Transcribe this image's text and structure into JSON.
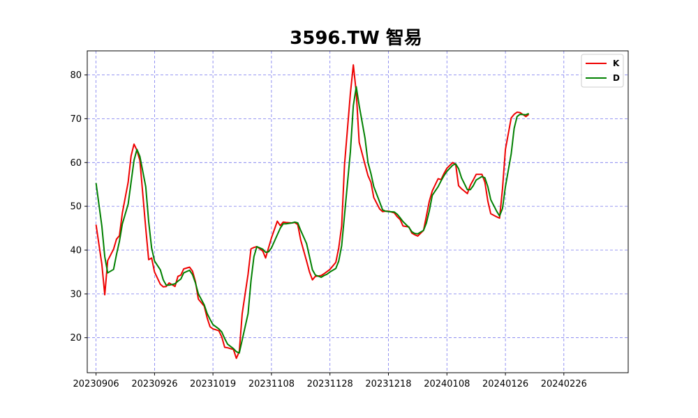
{
  "chart_data": {
    "type": "line",
    "title": "3596.TW 智易",
    "xlabel": "",
    "ylabel": "",
    "xlim": [
      "2023-09-03",
      "2024-03-06"
    ],
    "ylim": [
      12,
      85.5
    ],
    "grid": true,
    "grid_style": "dashed",
    "grid_color": "#7777ee",
    "legend_position": "top-right",
    "x_ticks": [
      {
        "date": "2023-09-06",
        "label": "20230906"
      },
      {
        "date": "2023-09-26",
        "label": "20230926"
      },
      {
        "date": "2023-10-16",
        "label": "20231019"
      },
      {
        "date": "2023-11-05",
        "label": "20231108"
      },
      {
        "date": "2023-11-25",
        "label": "20231128"
      },
      {
        "date": "2023-12-15",
        "label": "20231218"
      },
      {
        "date": "2024-01-04",
        "label": "20240108"
      },
      {
        "date": "2024-01-24",
        "label": "20240126"
      },
      {
        "date": "2024-02-13",
        "label": "20240226"
      }
    ],
    "y_ticks": [
      20,
      30,
      40,
      50,
      60,
      70,
      80
    ],
    "series": [
      {
        "name": "K",
        "color": "#ee0000",
        "points": [
          [
            "2023-09-06",
            45.8
          ],
          [
            "2023-09-08",
            36.8
          ],
          [
            "2023-09-09",
            29.8
          ],
          [
            "2023-09-10",
            37.6
          ],
          [
            "2023-09-12",
            40.2
          ],
          [
            "2023-09-13",
            42.5
          ],
          [
            "2023-09-14",
            43.3
          ],
          [
            "2023-09-15",
            48.5
          ],
          [
            "2023-09-17",
            55.5
          ],
          [
            "2023-09-18",
            61.5
          ],
          [
            "2023-09-19",
            64.2
          ],
          [
            "2023-09-20",
            62.8
          ],
          [
            "2023-09-21",
            60.5
          ],
          [
            "2023-09-23",
            45.0
          ],
          [
            "2023-09-24",
            37.8
          ],
          [
            "2023-09-25",
            38.2
          ],
          [
            "2023-09-26",
            35.0
          ],
          [
            "2023-09-28",
            32.2
          ],
          [
            "2023-09-29",
            31.6
          ],
          [
            "2023-09-30",
            31.7
          ],
          [
            "2023-10-01",
            32.5
          ],
          [
            "2023-10-03",
            31.7
          ],
          [
            "2023-10-04",
            34.0
          ],
          [
            "2023-10-05",
            34.3
          ],
          [
            "2023-10-06",
            35.7
          ],
          [
            "2023-10-08",
            36.1
          ],
          [
            "2023-10-09",
            35.2
          ],
          [
            "2023-10-10",
            32.8
          ],
          [
            "2023-10-11",
            28.8
          ],
          [
            "2023-10-13",
            27.2
          ],
          [
            "2023-10-14",
            24.5
          ],
          [
            "2023-10-15",
            22.5
          ],
          [
            "2023-10-16",
            22.0
          ],
          [
            "2023-10-18",
            21.6
          ],
          [
            "2023-10-19",
            20.2
          ],
          [
            "2023-10-20",
            17.8
          ],
          [
            "2023-10-21",
            17.7
          ],
          [
            "2023-10-23",
            17.3
          ],
          [
            "2023-10-24",
            15.3
          ],
          [
            "2023-10-25",
            16.8
          ],
          [
            "2023-10-26",
            25.5
          ],
          [
            "2023-10-28",
            34.5
          ],
          [
            "2023-10-29",
            40.3
          ],
          [
            "2023-10-30",
            40.6
          ],
          [
            "2023-10-31",
            40.8
          ],
          [
            "2023-11-02",
            39.8
          ],
          [
            "2023-11-03",
            38.2
          ],
          [
            "2023-11-04",
            40.5
          ],
          [
            "2023-11-05",
            42.8
          ],
          [
            "2023-11-07",
            46.6
          ],
          [
            "2023-11-08",
            45.6
          ],
          [
            "2023-11-09",
            46.4
          ],
          [
            "2023-11-10",
            46.3
          ],
          [
            "2023-11-12",
            46.2
          ],
          [
            "2023-11-13",
            46.3
          ],
          [
            "2023-11-14",
            45.8
          ],
          [
            "2023-11-15",
            42.3
          ],
          [
            "2023-11-17",
            37.5
          ],
          [
            "2023-11-18",
            35.0
          ],
          [
            "2023-11-19",
            33.2
          ],
          [
            "2023-11-20",
            34.0
          ],
          [
            "2023-11-22",
            34.2
          ],
          [
            "2023-11-23",
            34.6
          ],
          [
            "2023-11-24",
            35.1
          ],
          [
            "2023-11-25",
            35.6
          ],
          [
            "2023-11-27",
            37.2
          ],
          [
            "2023-11-28",
            40.5
          ],
          [
            "2023-11-29",
            45.5
          ],
          [
            "2023-11-30",
            59.5
          ],
          [
            "2023-12-02",
            75.8
          ],
          [
            "2023-12-03",
            82.3
          ],
          [
            "2023-12-04",
            76.0
          ],
          [
            "2023-12-05",
            64.6
          ],
          [
            "2023-12-07",
            59.5
          ],
          [
            "2023-12-08",
            57.0
          ],
          [
            "2023-12-09",
            55.5
          ],
          [
            "2023-12-10",
            52.0
          ],
          [
            "2023-12-12",
            49.4
          ],
          [
            "2023-12-13",
            48.8
          ],
          [
            "2023-12-14",
            48.9
          ],
          [
            "2023-12-15",
            48.9
          ],
          [
            "2023-12-17",
            48.5
          ],
          [
            "2023-12-18",
            47.6
          ],
          [
            "2023-12-19",
            47.0
          ],
          [
            "2023-12-20",
            45.5
          ],
          [
            "2023-12-22",
            45.3
          ],
          [
            "2023-12-23",
            43.9
          ],
          [
            "2023-12-24",
            43.5
          ],
          [
            "2023-12-25",
            43.2
          ],
          [
            "2023-12-27",
            44.5
          ],
          [
            "2023-12-28",
            47.8
          ],
          [
            "2023-12-29",
            51.2
          ],
          [
            "2023-12-30",
            53.5
          ],
          [
            "2024-01-01",
            56.3
          ],
          [
            "2024-01-02",
            56.1
          ],
          [
            "2024-01-03",
            57.5
          ],
          [
            "2024-01-04",
            58.7
          ],
          [
            "2024-01-06",
            60.0
          ],
          [
            "2024-01-07",
            59.6
          ],
          [
            "2024-01-08",
            54.7
          ],
          [
            "2024-01-09",
            54.0
          ],
          [
            "2024-01-11",
            52.9
          ],
          [
            "2024-01-12",
            54.8
          ],
          [
            "2024-01-13",
            56.0
          ],
          [
            "2024-01-14",
            57.3
          ],
          [
            "2024-01-16",
            57.3
          ],
          [
            "2024-01-17",
            55.5
          ],
          [
            "2024-01-18",
            51.2
          ],
          [
            "2024-01-19",
            48.3
          ],
          [
            "2024-01-21",
            47.6
          ],
          [
            "2024-01-22",
            47.3
          ],
          [
            "2024-01-23",
            54.0
          ],
          [
            "2024-01-24",
            63.0
          ],
          [
            "2024-01-26",
            70.2
          ],
          [
            "2024-01-27",
            71.0
          ],
          [
            "2024-01-28",
            71.5
          ],
          [
            "2024-01-29",
            71.4
          ],
          [
            "2024-01-31",
            70.5
          ],
          [
            "2024-02-01",
            71.0
          ]
        ]
      },
      {
        "name": "D",
        "color": "#008000",
        "points": [
          [
            "2023-09-06",
            55.3
          ],
          [
            "2023-09-08",
            45.5
          ],
          [
            "2023-09-09",
            38.5
          ],
          [
            "2023-09-10",
            34.8
          ],
          [
            "2023-09-12",
            35.6
          ],
          [
            "2023-09-13",
            39.0
          ],
          [
            "2023-09-14",
            42.0
          ],
          [
            "2023-09-15",
            46.0
          ],
          [
            "2023-09-17",
            50.5
          ],
          [
            "2023-09-18",
            55.5
          ],
          [
            "2023-09-19",
            60.5
          ],
          [
            "2023-09-20",
            63.0
          ],
          [
            "2023-09-21",
            61.4
          ],
          [
            "2023-09-23",
            54.5
          ],
          [
            "2023-09-24",
            46.5
          ],
          [
            "2023-09-25",
            40.5
          ],
          [
            "2023-09-26",
            37.5
          ],
          [
            "2023-09-28",
            35.5
          ],
          [
            "2023-09-29",
            33.2
          ],
          [
            "2023-09-30",
            32.0
          ],
          [
            "2023-10-01",
            32.0
          ],
          [
            "2023-10-03",
            32.3
          ],
          [
            "2023-10-04",
            32.9
          ],
          [
            "2023-10-05",
            33.4
          ],
          [
            "2023-10-06",
            34.8
          ],
          [
            "2023-10-08",
            35.4
          ],
          [
            "2023-10-09",
            34.4
          ],
          [
            "2023-10-10",
            32.5
          ],
          [
            "2023-10-11",
            30.0
          ],
          [
            "2023-10-13",
            27.5
          ],
          [
            "2023-10-14",
            25.5
          ],
          [
            "2023-10-15",
            24.2
          ],
          [
            "2023-10-16",
            23.0
          ],
          [
            "2023-10-18",
            22.0
          ],
          [
            "2023-10-19",
            21.3
          ],
          [
            "2023-10-20",
            19.8
          ],
          [
            "2023-10-21",
            18.5
          ],
          [
            "2023-10-23",
            17.5
          ],
          [
            "2023-10-24",
            16.8
          ],
          [
            "2023-10-25",
            16.5
          ],
          [
            "2023-10-26",
            19.5
          ],
          [
            "2023-10-28",
            25.5
          ],
          [
            "2023-10-29",
            33.0
          ],
          [
            "2023-10-30",
            38.5
          ],
          [
            "2023-10-31",
            40.8
          ],
          [
            "2023-11-02",
            40.2
          ],
          [
            "2023-11-03",
            39.5
          ],
          [
            "2023-11-04",
            39.6
          ],
          [
            "2023-11-05",
            40.5
          ],
          [
            "2023-11-07",
            43.5
          ],
          [
            "2023-11-08",
            45.0
          ],
          [
            "2023-11-09",
            46.0
          ],
          [
            "2023-11-10",
            46.0
          ],
          [
            "2023-11-12",
            46.2
          ],
          [
            "2023-11-13",
            46.4
          ],
          [
            "2023-11-14",
            46.2
          ],
          [
            "2023-11-15",
            44.5
          ],
          [
            "2023-11-17",
            41.5
          ],
          [
            "2023-11-18",
            38.5
          ],
          [
            "2023-11-19",
            35.5
          ],
          [
            "2023-11-20",
            34.3
          ],
          [
            "2023-11-22",
            33.8
          ],
          [
            "2023-11-23",
            34.2
          ],
          [
            "2023-11-24",
            34.5
          ],
          [
            "2023-11-25",
            35.0
          ],
          [
            "2023-11-27",
            35.8
          ],
          [
            "2023-11-28",
            37.5
          ],
          [
            "2023-11-29",
            41.0
          ],
          [
            "2023-11-30",
            48.0
          ],
          [
            "2023-12-02",
            62.5
          ],
          [
            "2023-12-03",
            73.0
          ],
          [
            "2023-12-04",
            77.3
          ],
          [
            "2023-12-05",
            73.0
          ],
          [
            "2023-12-07",
            65.5
          ],
          [
            "2023-12-08",
            60.0
          ],
          [
            "2023-12-09",
            57.5
          ],
          [
            "2023-12-10",
            54.5
          ],
          [
            "2023-12-12",
            51.0
          ],
          [
            "2023-12-13",
            49.2
          ],
          [
            "2023-12-14",
            48.9
          ],
          [
            "2023-12-15",
            48.8
          ],
          [
            "2023-12-17",
            48.7
          ],
          [
            "2023-12-18",
            48.2
          ],
          [
            "2023-12-19",
            47.4
          ],
          [
            "2023-12-20",
            46.5
          ],
          [
            "2023-12-22",
            45.2
          ],
          [
            "2023-12-23",
            44.2
          ],
          [
            "2023-12-24",
            43.8
          ],
          [
            "2023-12-25",
            43.7
          ],
          [
            "2023-12-27",
            44.5
          ],
          [
            "2023-12-28",
            46.2
          ],
          [
            "2023-12-29",
            49.0
          ],
          [
            "2023-12-30",
            52.5
          ],
          [
            "2024-01-01",
            54.5
          ],
          [
            "2024-01-02",
            55.8
          ],
          [
            "2024-01-03",
            57.0
          ],
          [
            "2024-01-04",
            58.0
          ],
          [
            "2024-01-06",
            59.4
          ],
          [
            "2024-01-07",
            59.7
          ],
          [
            "2024-01-08",
            58.6
          ],
          [
            "2024-01-09",
            56.5
          ],
          [
            "2024-01-11",
            53.8
          ],
          [
            "2024-01-12",
            53.8
          ],
          [
            "2024-01-13",
            54.7
          ],
          [
            "2024-01-14",
            56.0
          ],
          [
            "2024-01-16",
            56.8
          ],
          [
            "2024-01-17",
            56.5
          ],
          [
            "2024-01-18",
            54.5
          ],
          [
            "2024-01-19",
            51.5
          ],
          [
            "2024-01-21",
            48.9
          ],
          [
            "2024-01-22",
            47.8
          ],
          [
            "2024-01-23",
            49.5
          ],
          [
            "2024-01-24",
            54.5
          ],
          [
            "2024-01-26",
            62.0
          ],
          [
            "2024-01-27",
            67.8
          ],
          [
            "2024-01-28",
            70.5
          ],
          [
            "2024-01-29",
            71.0
          ],
          [
            "2024-01-31",
            70.9
          ],
          [
            "2024-02-01",
            71.2
          ]
        ]
      }
    ]
  }
}
